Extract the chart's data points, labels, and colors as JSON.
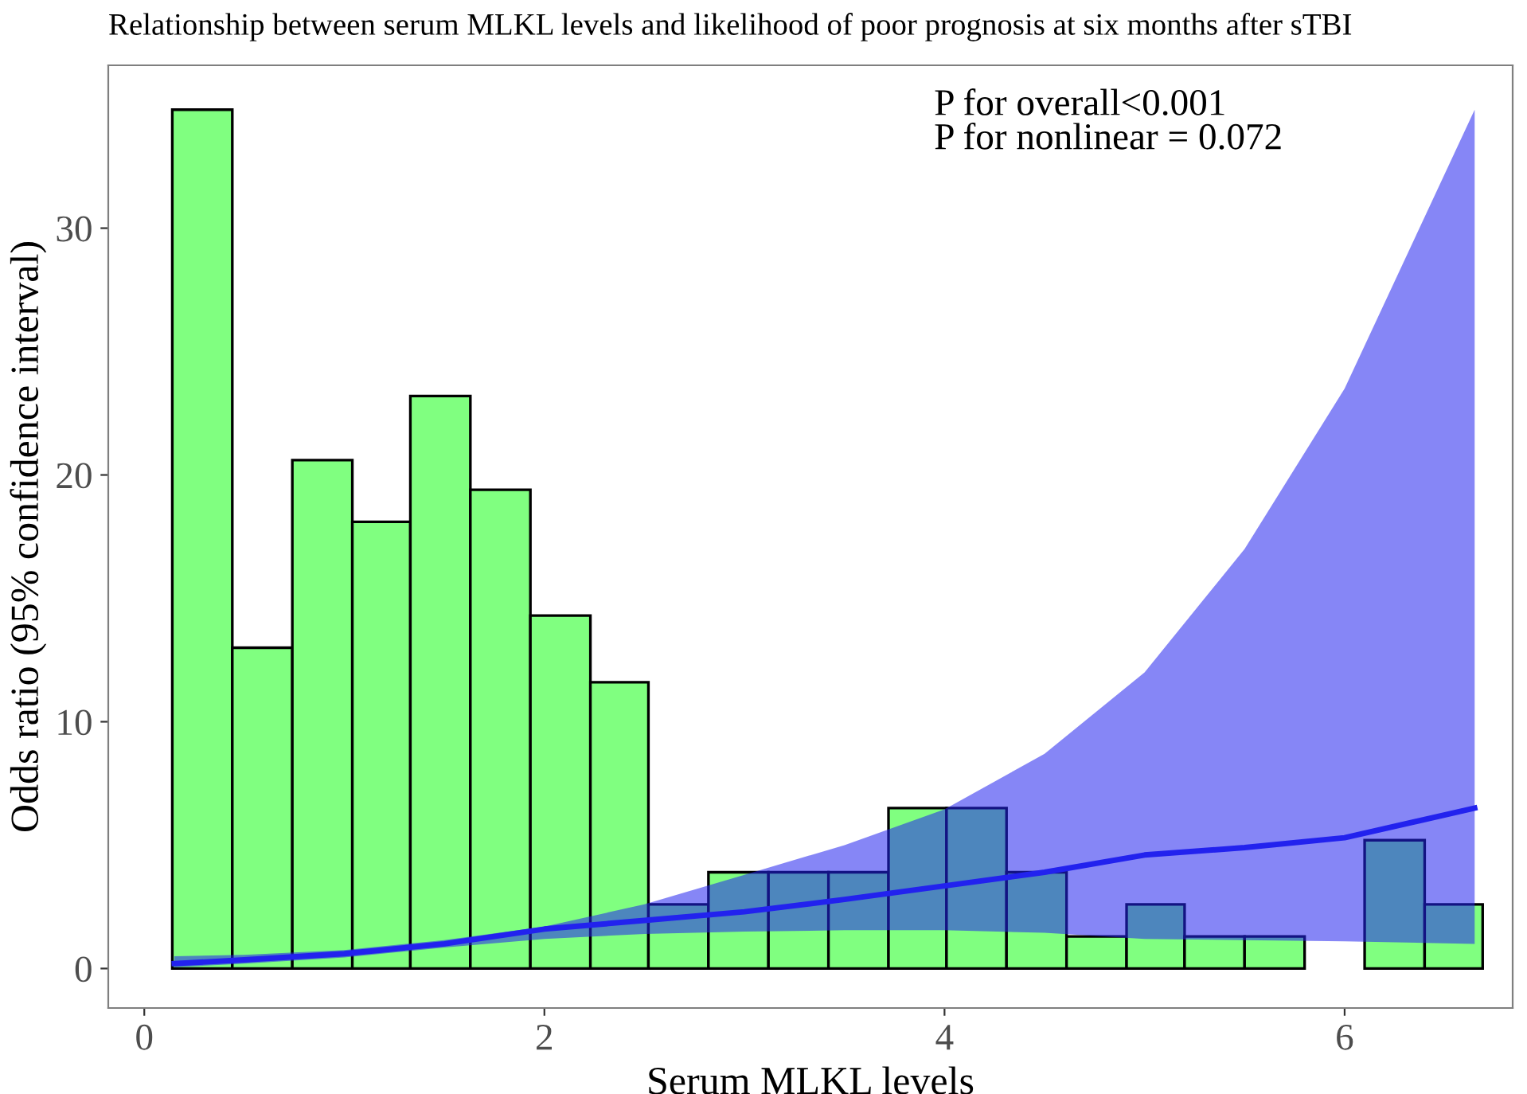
{
  "chart_data": {
    "type": "histogram",
    "title": "Relationship between serum MLKL levels and likelihood of poor prognosis at six months after sTBI",
    "xlabel": "Serum MLKL levels",
    "ylabel": "Odds ratio (95% confidence interval)",
    "bins": [
      0.14,
      0.44,
      0.74,
      1.04,
      1.33,
      1.63,
      1.93,
      2.23,
      2.52,
      2.82,
      3.12,
      3.42,
      3.72,
      4.01,
      4.31,
      4.61,
      4.91,
      5.2,
      5.5,
      5.8,
      6.1,
      6.4,
      6.69
    ],
    "values": [
      34.8,
      13.0,
      20.6,
      18.1,
      23.2,
      19.4,
      14.3,
      11.6,
      2.6,
      3.9,
      3.9,
      3.9,
      6.5,
      6.5,
      3.9,
      1.3,
      2.6,
      1.3,
      1.3,
      0,
      5.2,
      2.6
    ],
    "color": "#80ff80",
    "series": [
      {
        "type": "line",
        "color": "#2222ee",
        "x": [
          0.15,
          0.5,
          1.0,
          1.5,
          2.0,
          2.5,
          3.0,
          3.5,
          4.0,
          4.5,
          5.0,
          5.5,
          6.0,
          6.65
        ],
        "values": [
          0.2,
          0.35,
          0.6,
          1.0,
          1.6,
          1.95,
          2.3,
          2.8,
          3.35,
          3.9,
          4.6,
          4.9,
          5.3,
          6.5
        ],
        "lower": [
          0.05,
          0.2,
          0.45,
          0.85,
          1.2,
          1.4,
          1.5,
          1.55,
          1.55,
          1.45,
          1.2,
          1.15,
          1.1,
          1.0
        ],
        "upper": [
          0.5,
          0.55,
          0.75,
          1.15,
          1.7,
          2.6,
          3.8,
          5.0,
          6.45,
          8.7,
          12.0,
          17.0,
          23.5,
          34.8
        ]
      }
    ],
    "annotations": [
      "P for overall<0.001\nP for nonlinear = 0.072"
    ],
    "xlim": [
      -0.18,
      6.84
    ],
    "ylim": [
      -1.6,
      36.6
    ],
    "xticks": [
      0,
      2,
      4,
      6
    ],
    "yticks": [
      0,
      10,
      20,
      30
    ],
    "grid": false
  }
}
